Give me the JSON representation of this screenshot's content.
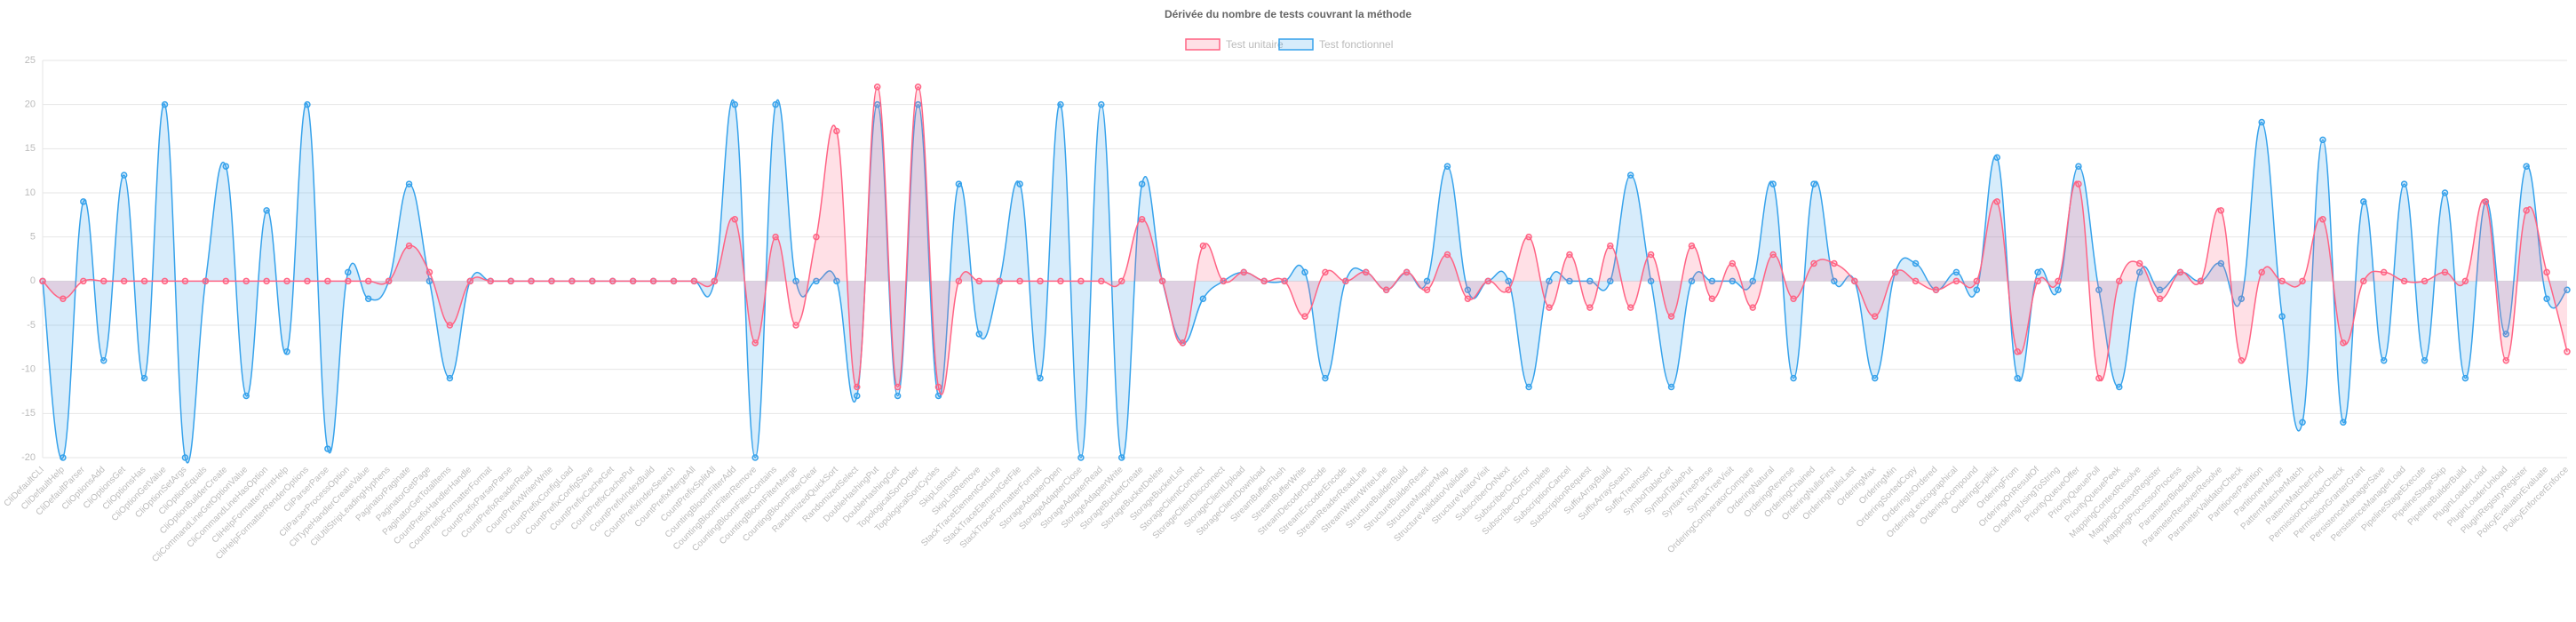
{
  "chart_data": {
    "type": "area",
    "title": "Dérivée du nombre de tests couvrant la méthode",
    "categories": [
      "CliDefaultCLI",
      "CliDefaultHelp",
      "CliDefaultParser",
      "CliOptionsAdd",
      "CliOptionsGet",
      "CliOptionsHas",
      "CliOptionGetValue",
      "CliOptionSetArgs",
      "CliOptionEquals",
      "CliOptionBuilderCreate",
      "CliCommandLineGetOptionValue",
      "CliCommandLineHasOption",
      "CliHelpFormatterPrintHelp",
      "CliHelpFormatterRenderOptions",
      "CliParserParse",
      "CliParserProcessOption",
      "CliTypeHandlerCreateValue",
      "CliUtilStripLeadingHyphens",
      "PaginatorPaginate",
      "PaginatorGetPage",
      "PaginatorGetTotalItems",
      "CountPrefixHandlerHandle",
      "CountPrefixFormatterFormat",
      "CountPrefixParserParse",
      "CountPrefixReaderRead",
      "CountPrefixWriterWrite",
      "CountPrefixConfigLoad",
      "CountPrefixConfigSave",
      "CountPrefixCacheGet",
      "CountPrefixCachePut",
      "CountPrefixIndexBuild",
      "CountPrefixIndexSearch",
      "CountPrefixMergeAll",
      "CountPrefixSplitAll",
      "CountingBloomFilterAdd",
      "CountingBloomFilterRemove",
      "CountingBloomFilterContains",
      "CountingBloomFilterMerge",
      "CountingBloomFilterClear",
      "RandomizedQuickSort",
      "RandomizedSelect",
      "DoubleHashingPut",
      "DoubleHashingGet",
      "TopologicalSortOrder",
      "TopologicalSortCycles",
      "SkipListInsert",
      "SkipListRemove",
      "StackTraceElementGetLine",
      "StackTraceElementGetFile",
      "StackTraceFormatterFormat",
      "StorageAdapterOpen",
      "StorageAdapterClose",
      "StorageAdapterRead",
      "StorageAdapterWrite",
      "StorageBucketCreate",
      "StorageBucketDelete",
      "StorageBucketList",
      "StorageClientConnect",
      "StorageClientDisconnect",
      "StorageClientUpload",
      "StorageClientDownload",
      "StreamBufferFlush",
      "StreamBufferWrite",
      "StreamDecoderDecode",
      "StreamEncoderEncode",
      "StreamReaderReadLine",
      "StreamWriterWriteLine",
      "StructureBuilderBuild",
      "StructureBuilderReset",
      "StructureMapperMap",
      "StructureValidatorValidate",
      "StructureVisitorVisit",
      "SubscriberOnNext",
      "SubscriberOnError",
      "SubscriberOnComplete",
      "SubscriptionCancel",
      "SubscriptionRequest",
      "SuffixArrayBuild",
      "SuffixArraySearch",
      "SuffixTreeInsert",
      "SymbolTableGet",
      "SymbolTablePut",
      "SyntaxTreeParse",
      "SyntaxTreeVisit",
      "OrderingComparatorCompare",
      "OrderingNatural",
      "OrderingReverse",
      "OrderingChained",
      "OrderingNullsFirst",
      "OrderingNullsLast",
      "OrderingMax",
      "OrderingMin",
      "OrderingSortedCopy",
      "OrderingIsOrdered",
      "OrderingLexicographical",
      "OrderingCompound",
      "OrderingExplicit",
      "OrderingFrom",
      "OrderingOnResultOf",
      "OrderingUsingToString",
      "PriorityQueueOffer",
      "PriorityQueuePoll",
      "PriorityQueuePeek",
      "MappingContextResolve",
      "MappingContextRegister",
      "MappingProcessorProcess",
      "ParameterBinderBind",
      "ParameterResolverResolve",
      "ParameterValidatorCheck",
      "PartitionerPartition",
      "PartitionerMerge",
      "PatternMatcherMatch",
      "PatternMatcherFind",
      "PermissionCheckerCheck",
      "PermissionGranterGrant",
      "PersistenceManagerSave",
      "PersistenceManagerLoad",
      "PipelineStageExecute",
      "PipelineStageSkip",
      "PipelineBuilderBuild",
      "PluginLoaderLoad",
      "PluginLoaderUnload",
      "PluginRegistryRegister",
      "PolicyEvaluatorEvaluate",
      "PolicyEnforcerEnforce"
    ],
    "series": [
      {
        "name": "Test unitaire",
        "color": "#ff6384",
        "fill": "rgba(255,99,132,0.2)",
        "values": [
          0,
          -2,
          0,
          0,
          0,
          0,
          0,
          0,
          0,
          0,
          0,
          0,
          0,
          0,
          0,
          0,
          0,
          0,
          4,
          1,
          -5,
          0,
          0,
          0,
          0,
          0,
          0,
          0,
          0,
          0,
          0,
          0,
          0,
          0,
          7,
          -7,
          5,
          -5,
          5,
          17,
          -12,
          22,
          -12,
          22,
          -12,
          0,
          0,
          0,
          0,
          0,
          0,
          0,
          0,
          0,
          7,
          0,
          -7,
          4,
          0,
          1,
          0,
          0,
          -4,
          1,
          0,
          1,
          -1,
          1,
          -1,
          3,
          -2,
          0,
          -1,
          5,
          -3,
          3,
          -3,
          4,
          -3,
          3,
          -4,
          4,
          -2,
          2,
          -3,
          3,
          -2,
          2,
          2,
          0,
          -4,
          1,
          0,
          -1,
          0,
          0,
          9,
          -8,
          0,
          0,
          11,
          -11,
          0,
          2,
          -2,
          1,
          0,
          8,
          -9,
          1,
          0,
          0,
          7,
          -7,
          0,
          1,
          0,
          0,
          1,
          0,
          9,
          -9,
          8,
          1,
          -8
        ]
      },
      {
        "name": "Test fonctionnel",
        "color": "#36a2eb",
        "fill": "rgba(54,162,235,0.2)",
        "values": [
          0,
          -20,
          9,
          -9,
          12,
          -11,
          20,
          -20,
          0,
          13,
          -13,
          8,
          -8,
          20,
          -19,
          1,
          -2,
          0,
          11,
          0,
          -11,
          0,
          0,
          0,
          0,
          0,
          0,
          0,
          0,
          0,
          0,
          0,
          0,
          0,
          20,
          -20,
          20,
          0,
          0,
          0,
          -13,
          20,
          -13,
          20,
          -13,
          11,
          -6,
          0,
          11,
          -11,
          20,
          -20,
          20,
          -20,
          11,
          0,
          -7,
          -2,
          0,
          1,
          0,
          0,
          1,
          -11,
          0,
          1,
          -1,
          1,
          0,
          13,
          -1,
          0,
          0,
          -12,
          0,
          0,
          0,
          0,
          12,
          0,
          -12,
          0,
          0,
          0,
          0,
          11,
          -11,
          11,
          0,
          0,
          -11,
          1,
          2,
          -1,
          1,
          -1,
          14,
          -11,
          1,
          -1,
          13,
          -1,
          -12,
          1,
          -1,
          1,
          0,
          2,
          -2,
          18,
          -4,
          -16,
          16,
          -16,
          9,
          -9,
          11,
          -9,
          10,
          -11,
          9,
          -6,
          13,
          -2,
          -1
        ]
      }
    ],
    "ylim": [
      -20,
      25
    ],
    "yticks": [
      -20,
      -15,
      -10,
      -5,
      0,
      5,
      10,
      15,
      20,
      25
    ],
    "grid": true,
    "legend": "top"
  }
}
